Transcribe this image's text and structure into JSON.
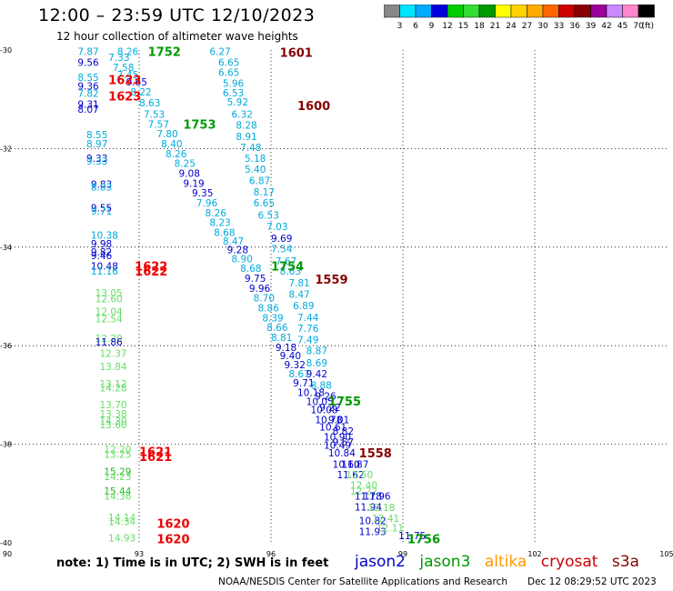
{
  "header": {
    "title": "12:00 – 23:59 UTC 12/10/2023",
    "subtitle": "12 hour collection of altimeter wave heights"
  },
  "scale": {
    "unit": "(ft)",
    "bins": [
      {
        "label": "3",
        "color": "#888888"
      },
      {
        "label": "6",
        "color": "#00e5ff"
      },
      {
        "label": "9",
        "color": "#00aaff"
      },
      {
        "label": "12",
        "color": "#0000dd"
      },
      {
        "label": "15",
        "color": "#00cc00"
      },
      {
        "label": "18",
        "color": "#33dd33"
      },
      {
        "label": "21",
        "color": "#009900"
      },
      {
        "label": "24",
        "color": "#ffff00"
      },
      {
        "label": "27",
        "color": "#ffd400"
      },
      {
        "label": "30",
        "color": "#ffaa00"
      },
      {
        "label": "33",
        "color": "#ff6600"
      },
      {
        "label": "36",
        "color": "#cc0000"
      },
      {
        "label": "39",
        "color": "#880000"
      },
      {
        "label": "42",
        "color": "#990099"
      },
      {
        "label": "45",
        "color": "#cc88ff"
      },
      {
        "label": "70",
        "color": "#ff88cc"
      },
      {
        "label": "",
        "color": "#000000"
      }
    ]
  },
  "footer": {
    "note": "note:  1) Time is in UTC;  2) SWH is in feet",
    "credit": "NOAA/NESDIS Center for Satellite Applications and Research",
    "date": "Dec 12 08:29:52 UTC 2023"
  },
  "legend": [
    {
      "name": "jason2",
      "color": "#0000cc"
    },
    {
      "name": "jason3",
      "color": "#009900"
    },
    {
      "name": "altika",
      "color": "#ff9900"
    },
    {
      "name": "cryosat",
      "color": "#cc0000"
    },
    {
      "name": "s3a",
      "color": "#880000"
    }
  ],
  "chart_data": {
    "type": "scatter",
    "title": "12 hour collection of altimeter wave heights",
    "xlabel": "",
    "ylabel": "",
    "xlim": [
      90,
      105
    ],
    "ylim": [
      -40,
      -30
    ],
    "x_ticks": [
      "90",
      "93",
      "96",
      "99",
      "102",
      "105"
    ],
    "y_ticks": [
      "-30",
      "-32",
      "-34",
      "-36",
      "-38",
      "-40"
    ],
    "grid": "dotted",
    "value_colors": {
      "c0": "#00aadd",
      "c1": "#0000cc",
      "c2": "#66dd66",
      "c3": "#22bb22"
    },
    "track_points": [
      {
        "x": 91.6,
        "y": -30.03,
        "label": "7.87",
        "c": "c0"
      },
      {
        "x": 91.6,
        "y": -30.25,
        "label": "9.56",
        "c": "c1"
      },
      {
        "x": 91.6,
        "y": -30.55,
        "label": "8.55",
        "c": "c0"
      },
      {
        "x": 91.6,
        "y": -30.73,
        "label": "9.36",
        "c": "c1"
      },
      {
        "x": 91.6,
        "y": -30.88,
        "label": "7.82",
        "c": "c0"
      },
      {
        "x": 91.6,
        "y": -31.1,
        "label": "9.31",
        "c": "c1"
      },
      {
        "x": 91.6,
        "y": -31.2,
        "label": "8.07",
        "c": "c1"
      },
      {
        "x": 91.8,
        "y": -31.72,
        "label": "8.55",
        "c": "c0"
      },
      {
        "x": 91.8,
        "y": -31.9,
        "label": "8.97",
        "c": "c0"
      },
      {
        "x": 91.8,
        "y": -32.2,
        "label": "9.33",
        "c": "c1"
      },
      {
        "x": 91.8,
        "y": -32.25,
        "label": "9.33",
        "c": "c0"
      },
      {
        "x": 91.9,
        "y": -32.72,
        "label": "9.83",
        "c": "c1"
      },
      {
        "x": 91.9,
        "y": -32.78,
        "label": "8.83",
        "c": "c0"
      },
      {
        "x": 91.9,
        "y": -33.2,
        "label": "9.55",
        "c": "c1"
      },
      {
        "x": 91.9,
        "y": -33.27,
        "label": "9.71",
        "c": "c0"
      },
      {
        "x": 91.9,
        "y": -33.75,
        "label": "10.38",
        "c": "c0"
      },
      {
        "x": 91.9,
        "y": -33.93,
        "label": "9.98",
        "c": "c1"
      },
      {
        "x": 91.9,
        "y": -34.1,
        "label": "9.82",
        "c": "c1"
      },
      {
        "x": 91.9,
        "y": -34.17,
        "label": "9.46",
        "c": "c1"
      },
      {
        "x": 91.9,
        "y": -34.38,
        "label": "10.48",
        "c": "c1"
      },
      {
        "x": 91.9,
        "y": -34.48,
        "label": "11.16",
        "c": "c0"
      },
      {
        "x": 92.0,
        "y": -34.93,
        "label": "13.05",
        "c": "c2"
      },
      {
        "x": 92.0,
        "y": -35.05,
        "label": "12.60",
        "c": "c2"
      },
      {
        "x": 92.0,
        "y": -35.3,
        "label": "12.04",
        "c": "c2"
      },
      {
        "x": 92.0,
        "y": -35.45,
        "label": "12.54",
        "c": "c2"
      },
      {
        "x": 92.0,
        "y": -35.85,
        "label": "12.20",
        "c": "c2"
      },
      {
        "x": 92.0,
        "y": -35.92,
        "label": "11.86",
        "c": "c1"
      },
      {
        "x": 92.1,
        "y": -36.15,
        "label": "12.37",
        "c": "c2"
      },
      {
        "x": 92.1,
        "y": -36.42,
        "label": "13.84",
        "c": "c2"
      },
      {
        "x": 92.1,
        "y": -36.77,
        "label": "13.12",
        "c": "c2"
      },
      {
        "x": 92.1,
        "y": -36.85,
        "label": "14.28",
        "c": "c2"
      },
      {
        "x": 92.1,
        "y": -37.2,
        "label": "13.70",
        "c": "c2"
      },
      {
        "x": 92.1,
        "y": -37.38,
        "label": "13.38",
        "c": "c2"
      },
      {
        "x": 92.1,
        "y": -37.53,
        "label": "14.30",
        "c": "c2"
      },
      {
        "x": 92.1,
        "y": -37.6,
        "label": "13.60",
        "c": "c2"
      },
      {
        "x": 92.2,
        "y": -38.1,
        "label": "12.20",
        "c": "c2"
      },
      {
        "x": 92.2,
        "y": -38.2,
        "label": "13.25",
        "c": "c2"
      },
      {
        "x": 92.2,
        "y": -38.55,
        "label": "15.29",
        "c": "c3"
      },
      {
        "x": 92.2,
        "y": -38.65,
        "label": "14.23",
        "c": "c2"
      },
      {
        "x": 92.2,
        "y": -38.95,
        "label": "15.44",
        "c": "c3"
      },
      {
        "x": 92.2,
        "y": -39.05,
        "label": "14.36",
        "c": "c2"
      },
      {
        "x": 92.3,
        "y": -39.48,
        "label": "14.14",
        "c": "c2"
      },
      {
        "x": 92.3,
        "y": -39.57,
        "label": "14.34",
        "c": "c2"
      },
      {
        "x": 92.3,
        "y": -39.9,
        "label": "14.93",
        "c": "c2"
      },
      {
        "x": 92.5,
        "y": -30.03,
        "label": "8.26",
        "c": "c0"
      },
      {
        "x": 92.3,
        "y": -30.15,
        "label": "7.33",
        "c": "c0"
      },
      {
        "x": 92.4,
        "y": -30.35,
        "label": "7.58",
        "c": "c0"
      },
      {
        "x": 92.5,
        "y": -30.5,
        "label": "7.45",
        "c": "c0"
      },
      {
        "x": 92.7,
        "y": -30.65,
        "label": "9.65",
        "c": "c1"
      },
      {
        "x": 92.8,
        "y": -30.85,
        "label": "8.22",
        "c": "c0"
      },
      {
        "x": 93.0,
        "y": -31.07,
        "label": "8.63",
        "c": "c0"
      },
      {
        "x": 93.1,
        "y": -31.3,
        "label": "7.53",
        "c": "c0"
      },
      {
        "x": 93.2,
        "y": -31.5,
        "label": "7.57",
        "c": "c0"
      },
      {
        "x": 93.4,
        "y": -31.7,
        "label": "7.80",
        "c": "c0"
      },
      {
        "x": 93.5,
        "y": -31.9,
        "label": "8.40",
        "c": "c0"
      },
      {
        "x": 93.6,
        "y": -32.1,
        "label": "8.26",
        "c": "c0"
      },
      {
        "x": 93.8,
        "y": -32.3,
        "label": "8.25",
        "c": "c0"
      },
      {
        "x": 93.9,
        "y": -32.5,
        "label": "9.08",
        "c": "c1"
      },
      {
        "x": 94.0,
        "y": -32.7,
        "label": "9.19",
        "c": "c1"
      },
      {
        "x": 94.2,
        "y": -32.9,
        "label": "9.35",
        "c": "c1"
      },
      {
        "x": 94.3,
        "y": -33.1,
        "label": "7.96",
        "c": "c0"
      },
      {
        "x": 94.5,
        "y": -33.3,
        "label": "8.26",
        "c": "c0"
      },
      {
        "x": 94.6,
        "y": -33.5,
        "label": "8.23",
        "c": "c0"
      },
      {
        "x": 94.7,
        "y": -33.7,
        "label": "8.68",
        "c": "c0"
      },
      {
        "x": 94.9,
        "y": -33.87,
        "label": "8.47",
        "c": "c0"
      },
      {
        "x": 95.0,
        "y": -34.05,
        "label": "9.28",
        "c": "c1"
      },
      {
        "x": 95.1,
        "y": -34.23,
        "label": "8.90",
        "c": "c0"
      },
      {
        "x": 95.3,
        "y": -34.43,
        "label": "8.68",
        "c": "c0"
      },
      {
        "x": 95.4,
        "y": -34.63,
        "label": "9.75",
        "c": "c1"
      },
      {
        "x": 95.5,
        "y": -34.83,
        "label": "9.96",
        "c": "c1"
      },
      {
        "x": 95.6,
        "y": -35.03,
        "label": "8.70",
        "c": "c0"
      },
      {
        "x": 95.7,
        "y": -35.23,
        "label": "8.86",
        "c": "c0"
      },
      {
        "x": 95.8,
        "y": -35.43,
        "label": "8.39",
        "c": "c0"
      },
      {
        "x": 95.9,
        "y": -35.63,
        "label": "8.66",
        "c": "c0"
      },
      {
        "x": 96.0,
        "y": -35.83,
        "label": "8.81",
        "c": "c0"
      },
      {
        "x": 96.1,
        "y": -36.03,
        "label": "9.18",
        "c": "c1"
      },
      {
        "x": 96.2,
        "y": -36.2,
        "label": "9.40",
        "c": "c1"
      },
      {
        "x": 96.3,
        "y": -36.38,
        "label": "9.32",
        "c": "c1"
      },
      {
        "x": 96.4,
        "y": -36.57,
        "label": "8.67",
        "c": "c0"
      },
      {
        "x": 96.5,
        "y": -36.75,
        "label": "9.71",
        "c": "c1"
      },
      {
        "x": 96.6,
        "y": -36.95,
        "label": "10.18",
        "c": "c1"
      },
      {
        "x": 96.8,
        "y": -37.13,
        "label": "10.05",
        "c": "c1"
      },
      {
        "x": 96.9,
        "y": -37.3,
        "label": "10.08",
        "c": "c1"
      },
      {
        "x": 97.0,
        "y": -37.5,
        "label": "10.78",
        "c": "c1"
      },
      {
        "x": 97.1,
        "y": -37.65,
        "label": "10.61",
        "c": "c1"
      },
      {
        "x": 97.2,
        "y": -37.85,
        "label": "10.90",
        "c": "c1"
      },
      {
        "x": 97.2,
        "y": -38.02,
        "label": "10.49",
        "c": "c1"
      },
      {
        "x": 97.3,
        "y": -38.17,
        "label": "10.84",
        "c": "c1"
      },
      {
        "x": 97.4,
        "y": -38.4,
        "label": "10.60",
        "c": "c1"
      },
      {
        "x": 97.5,
        "y": -38.62,
        "label": "11.62",
        "c": "c1"
      },
      {
        "x": 97.8,
        "y": -38.95,
        "label": "12.22",
        "c": "c2"
      },
      {
        "x": 97.9,
        "y": -39.05,
        "label": "11.78",
        "c": "c1"
      },
      {
        "x": 97.9,
        "y": -39.27,
        "label": "11.94",
        "c": "c1"
      },
      {
        "x": 98.0,
        "y": -39.55,
        "label": "10.82",
        "c": "c1"
      },
      {
        "x": 98.0,
        "y": -39.77,
        "label": "11.93",
        "c": "c1"
      },
      {
        "x": 98.9,
        "y": -39.85,
        "label": "11.75",
        "c": "c1"
      },
      {
        "x": 94.6,
        "y": -30.03,
        "label": "6.27",
        "c": "c0"
      },
      {
        "x": 94.8,
        "y": -30.25,
        "label": "6.65",
        "c": "c0"
      },
      {
        "x": 94.8,
        "y": -30.45,
        "label": "6.65",
        "c": "c0"
      },
      {
        "x": 94.9,
        "y": -30.67,
        "label": "5.96",
        "c": "c0"
      },
      {
        "x": 94.9,
        "y": -30.87,
        "label": "6.53",
        "c": "c0"
      },
      {
        "x": 95.0,
        "y": -31.05,
        "label": "5.92",
        "c": "c0"
      },
      {
        "x": 95.1,
        "y": -31.3,
        "label": "6.32",
        "c": "c0"
      },
      {
        "x": 95.2,
        "y": -31.52,
        "label": "8.28",
        "c": "c0"
      },
      {
        "x": 95.2,
        "y": -31.75,
        "label": "8.91",
        "c": "c0"
      },
      {
        "x": 95.3,
        "y": -31.97,
        "label": "7.48",
        "c": "c0"
      },
      {
        "x": 95.4,
        "y": -32.2,
        "label": "5.18",
        "c": "c0"
      },
      {
        "x": 95.4,
        "y": -32.42,
        "label": "5.40",
        "c": "c0"
      },
      {
        "x": 95.5,
        "y": -32.65,
        "label": "6.87",
        "c": "c0"
      },
      {
        "x": 95.6,
        "y": -32.88,
        "label": "8.17",
        "c": "c0"
      },
      {
        "x": 95.6,
        "y": -33.1,
        "label": "6.65",
        "c": "c0"
      },
      {
        "x": 95.7,
        "y": -33.35,
        "label": "6.53",
        "c": "c0"
      },
      {
        "x": 95.9,
        "y": -33.58,
        "label": "7.03",
        "c": "c0"
      },
      {
        "x": 96.0,
        "y": -33.82,
        "label": "9.69",
        "c": "c1"
      },
      {
        "x": 96.0,
        "y": -34.03,
        "label": "7.54",
        "c": "c0"
      },
      {
        "x": 96.1,
        "y": -34.28,
        "label": "7.67",
        "c": "c0"
      },
      {
        "x": 96.2,
        "y": -34.48,
        "label": "8.63",
        "c": "c0"
      },
      {
        "x": 96.4,
        "y": -34.72,
        "label": "7.81",
        "c": "c0"
      },
      {
        "x": 96.4,
        "y": -34.95,
        "label": "8.47",
        "c": "c0"
      },
      {
        "x": 96.5,
        "y": -35.18,
        "label": "6.89",
        "c": "c0"
      },
      {
        "x": 96.6,
        "y": -35.42,
        "label": "7.44",
        "c": "c0"
      },
      {
        "x": 96.6,
        "y": -35.65,
        "label": "7.76",
        "c": "c0"
      },
      {
        "x": 96.6,
        "y": -35.88,
        "label": "7.49",
        "c": "c0"
      },
      {
        "x": 96.8,
        "y": -36.1,
        "label": "8.87",
        "c": "c0"
      },
      {
        "x": 96.8,
        "y": -36.35,
        "label": "8.69",
        "c": "c0"
      },
      {
        "x": 96.8,
        "y": -36.57,
        "label": "9.42",
        "c": "c1"
      },
      {
        "x": 96.9,
        "y": -36.8,
        "label": "8.88",
        "c": "c0"
      },
      {
        "x": 97.0,
        "y": -37.02,
        "label": "9.26",
        "c": "c1"
      },
      {
        "x": 97.1,
        "y": -37.25,
        "label": "9.22",
        "c": "c1"
      },
      {
        "x": 97.3,
        "y": -37.5,
        "label": "9.01",
        "c": "c1"
      },
      {
        "x": 97.4,
        "y": -37.73,
        "label": "8.82",
        "c": "c1"
      },
      {
        "x": 97.4,
        "y": -37.95,
        "label": "9.57",
        "c": "c1"
      },
      {
        "x": 97.6,
        "y": -38.4,
        "label": "11.87",
        "c": "c1"
      },
      {
        "x": 97.7,
        "y": -38.62,
        "label": "12.50",
        "c": "c2"
      },
      {
        "x": 97.8,
        "y": -38.83,
        "label": "12.40",
        "c": "c2"
      },
      {
        "x": 98.1,
        "y": -39.05,
        "label": "11.96",
        "c": "c1"
      },
      {
        "x": 98.2,
        "y": -39.28,
        "label": "12.18",
        "c": "c2"
      },
      {
        "x": 98.3,
        "y": -39.5,
        "label": "12.41",
        "c": "c2"
      },
      {
        "x": 98.4,
        "y": -39.7,
        "label": "12.11",
        "c": "c2"
      }
    ],
    "time_labels": [
      {
        "x": 93.2,
        "y": -30.03,
        "label": "1752",
        "color": "#009900"
      },
      {
        "x": 96.2,
        "y": -30.05,
        "label": "1601",
        "color": "#880000"
      },
      {
        "x": 92.3,
        "y": -30.6,
        "label": "1623",
        "color": "#ee0000"
      },
      {
        "x": 92.3,
        "y": -30.93,
        "label": "1623",
        "color": "#ee0000"
      },
      {
        "x": 96.6,
        "y": -31.13,
        "label": "1600",
        "color": "#880000"
      },
      {
        "x": 94.0,
        "y": -31.5,
        "label": "1753",
        "color": "#009900"
      },
      {
        "x": 92.9,
        "y": -34.38,
        "label": "1622",
        "color": "#ee0000"
      },
      {
        "x": 92.9,
        "y": -34.48,
        "label": "1622",
        "color": "#ee0000"
      },
      {
        "x": 96.0,
        "y": -34.38,
        "label": "1754",
        "color": "#009900"
      },
      {
        "x": 97.0,
        "y": -34.65,
        "label": "1559",
        "color": "#880000"
      },
      {
        "x": 97.3,
        "y": -37.12,
        "label": "1755",
        "color": "#009900"
      },
      {
        "x": 93.0,
        "y": -38.15,
        "label": "1621",
        "color": "#ee0000"
      },
      {
        "x": 93.0,
        "y": -38.25,
        "label": "1621",
        "color": "#ee0000"
      },
      {
        "x": 98.0,
        "y": -38.17,
        "label": "1558",
        "color": "#880000"
      },
      {
        "x": 93.4,
        "y": -39.6,
        "label": "1620",
        "color": "#ee0000"
      },
      {
        "x": 93.4,
        "y": -39.92,
        "label": "1620",
        "color": "#ee0000"
      },
      {
        "x": 99.1,
        "y": -39.92,
        "label": "1756",
        "color": "#009900"
      }
    ]
  }
}
